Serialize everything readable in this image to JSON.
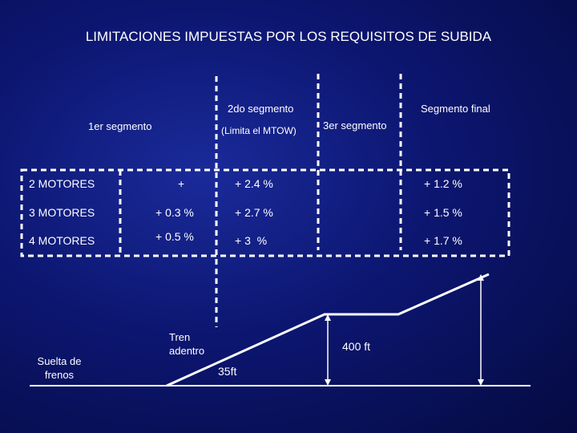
{
  "title": "LIMITACIONES IMPUESTAS POR LOS REQUISITOS DE SUBIDA",
  "segments": {
    "first": "1er segmento",
    "second": "2do segmento",
    "second_note": "(Limita el MTOW)",
    "third": "3er segmento",
    "final": "Segmento final"
  },
  "table": {
    "rows": [
      {
        "label": "2 MOTORES",
        "seg1": "+",
        "seg2": "+ 2.4 %",
        "final": "+ 1.2 %"
      },
      {
        "label": "3 MOTORES",
        "seg1": "+ 0.3 %",
        "seg2": "+ 2.7 %",
        "final": "+ 1.5 %"
      },
      {
        "label": "4 MOTORES",
        "seg1": "+ 0.5 %",
        "seg2": "+ 3  %",
        "final": "+ 1.7 %"
      }
    ]
  },
  "profile": {
    "brake_release": "Suelta de frenos",
    "gear_up": "Tren adentro",
    "height_35": "35ft",
    "height_400": "400 ft"
  },
  "colors": {
    "background": "#0c1670",
    "lines": "#ffffff"
  }
}
